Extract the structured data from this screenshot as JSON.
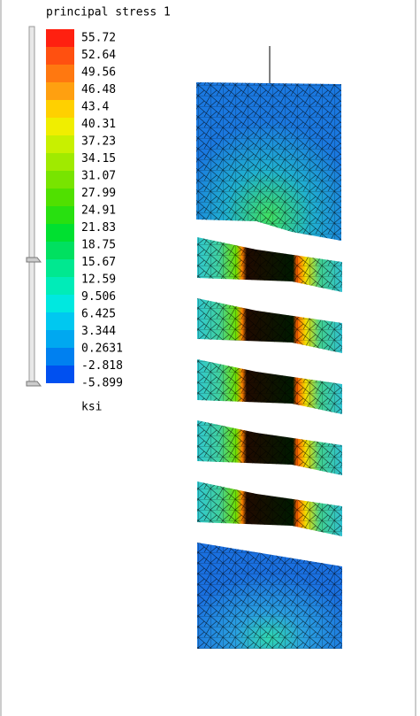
{
  "legend": {
    "title": "principal stress 1",
    "labels": [
      55.72,
      52.64,
      49.56,
      46.48,
      43.4,
      40.31,
      37.23,
      34.15,
      31.07,
      27.99,
      24.91,
      21.83,
      18.75,
      15.67,
      12.59,
      9.506,
      6.425,
      3.344,
      0.2631,
      -2.818,
      -5.899
    ],
    "colors": [
      "#ff2010",
      "#ff5010",
      "#ff7810",
      "#ffa010",
      "#ffd000",
      "#f0ee00",
      "#c8f000",
      "#a0ea00",
      "#78e400",
      "#50e000",
      "#28e010",
      "#00e030",
      "#00e060",
      "#00e890",
      "#00ecb8",
      "#00e8e0",
      "#00c8f0",
      "#00a8f0",
      "#0080f0",
      "#0050f0"
    ],
    "unit": "ksi"
  }
}
